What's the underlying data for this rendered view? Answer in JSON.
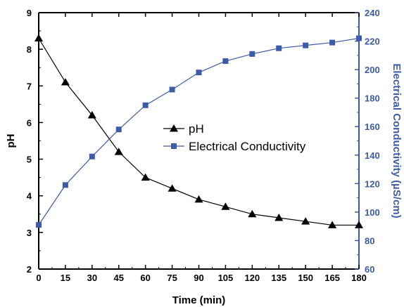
{
  "chart_data": {
    "type": "line",
    "title": "",
    "xlabel": "Time (min)",
    "ylabel_left": "pH",
    "ylabel_right": "Electrical Conductivity (µS/cm)",
    "x": [
      0,
      15,
      30,
      45,
      60,
      75,
      90,
      105,
      120,
      135,
      150,
      165,
      180
    ],
    "xlim": [
      0,
      180
    ],
    "xticks": [
      "0",
      "15",
      "30",
      "45",
      "60",
      "75",
      "90",
      "105",
      "120",
      "135",
      "150",
      "165",
      "180"
    ],
    "ylim_left": [
      2,
      9
    ],
    "yticks_left": [
      "2",
      "3",
      "4",
      "5",
      "6",
      "7",
      "8",
      "9"
    ],
    "ylim_right": [
      60,
      240
    ],
    "yticks_right": [
      "60",
      "80",
      "100",
      "120",
      "140",
      "160",
      "180",
      "200",
      "220",
      "240"
    ],
    "grid": false,
    "legend_position": "center-right",
    "series": [
      {
        "name": "pH",
        "axis": "left",
        "marker": "triangle",
        "color": "#000000",
        "values": [
          8.3,
          7.1,
          6.2,
          5.2,
          4.5,
          4.2,
          3.9,
          3.7,
          3.5,
          3.4,
          3.3,
          3.2,
          3.2
        ]
      },
      {
        "name": "Electrical Conductivity",
        "axis": "right",
        "marker": "square",
        "color": "#3c5ba8",
        "values": [
          91,
          119,
          139,
          158,
          175,
          186,
          198,
          206,
          211,
          215,
          217,
          219,
          222
        ]
      }
    ]
  },
  "colors": {
    "left_axis": "#000000",
    "right_axis": "#3c5ba8",
    "frame": "#000000"
  }
}
